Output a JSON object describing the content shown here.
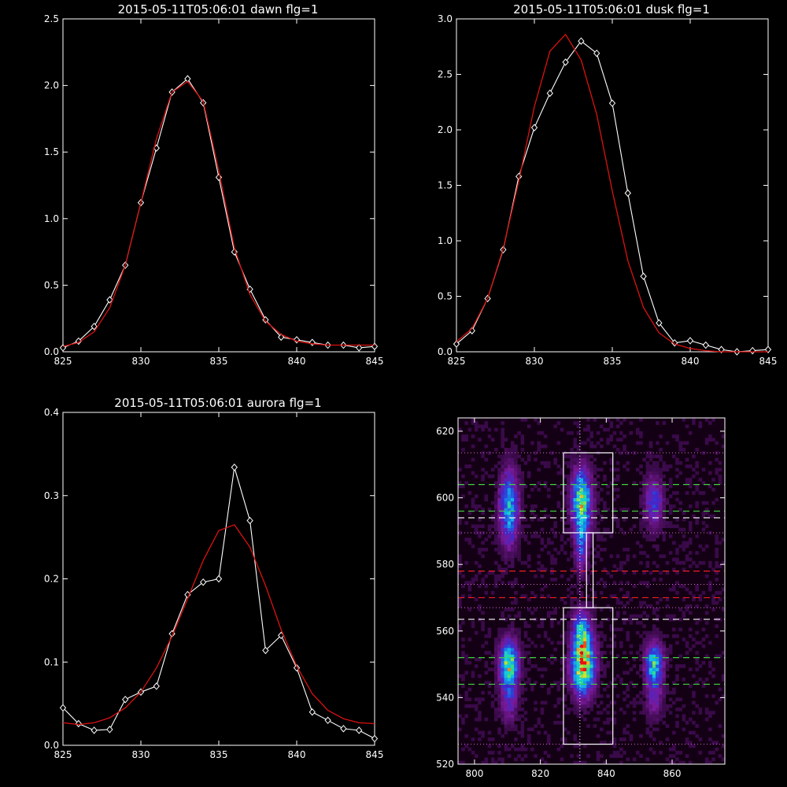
{
  "chart_data": [
    {
      "type": "line",
      "title": "2015-05-11T05:06:01 dawn flg=1",
      "xlim": [
        825,
        845
      ],
      "ylim": [
        0,
        2.5
      ],
      "xticks": [
        825,
        830,
        835,
        840,
        845
      ],
      "yticks": [
        0.0,
        0.5,
        1.0,
        1.5,
        2.0,
        2.5
      ],
      "xtick_labels": [
        "825",
        "830",
        "835",
        "840",
        "845"
      ],
      "ytick_labels": [
        "0.0",
        "0.5",
        "1.0",
        "1.5",
        "2.0",
        "2.5"
      ],
      "grid": false,
      "series": [
        {
          "kind": "data",
          "color": "#ffffff",
          "marker": "diamond",
          "x": [
            825,
            826,
            827,
            828,
            829,
            830,
            831,
            832,
            833,
            834,
            835,
            836,
            837,
            838,
            839,
            840,
            841,
            842,
            843,
            844,
            845
          ],
          "y": [
            0.03,
            0.08,
            0.19,
            0.39,
            0.65,
            1.12,
            1.53,
            1.95,
            2.05,
            1.87,
            1.31,
            0.75,
            0.47,
            0.24,
            0.11,
            0.09,
            0.07,
            0.05,
            0.05,
            0.03,
            0.04
          ]
        },
        {
          "kind": "fit",
          "color": "#dd1111",
          "x": [
            825,
            826,
            827,
            828,
            829,
            830,
            831,
            832,
            833,
            834,
            835,
            836,
            837,
            838,
            839,
            840,
            841,
            842,
            843,
            844,
            845
          ],
          "y": [
            0.04,
            0.07,
            0.15,
            0.33,
            0.65,
            1.12,
            1.6,
            1.95,
            2.03,
            1.88,
            1.36,
            0.78,
            0.43,
            0.23,
            0.13,
            0.08,
            0.06,
            0.05,
            0.05,
            0.05,
            0.05
          ]
        }
      ]
    },
    {
      "type": "line",
      "title": "2015-05-11T05:06:01 dusk flg=1",
      "xlim": [
        825,
        845
      ],
      "ylim": [
        0,
        3.0
      ],
      "xticks": [
        825,
        830,
        835,
        840,
        845
      ],
      "yticks": [
        0.0,
        0.5,
        1.0,
        1.5,
        2.0,
        2.5,
        3.0
      ],
      "xtick_labels": [
        "825",
        "830",
        "835",
        "840",
        "845"
      ],
      "ytick_labels": [
        "0.0",
        "0.5",
        "1.0",
        "1.5",
        "2.0",
        "2.5",
        "3.0"
      ],
      "grid": false,
      "series": [
        {
          "kind": "data",
          "color": "#ffffff",
          "marker": "diamond",
          "x": [
            825,
            826,
            827,
            828,
            829,
            830,
            831,
            832,
            833,
            834,
            835,
            836,
            837,
            838,
            839,
            840,
            841,
            842,
            843,
            844,
            845
          ],
          "y": [
            0.07,
            0.19,
            0.48,
            0.92,
            1.58,
            2.02,
            2.33,
            2.61,
            2.8,
            2.69,
            2.24,
            1.43,
            0.68,
            0.26,
            0.08,
            0.1,
            0.06,
            0.02,
            0.0,
            0.01,
            0.02
          ]
        },
        {
          "kind": "fit",
          "color": "#dd1111",
          "x": [
            825,
            826,
            827,
            828,
            829,
            830,
            831,
            832,
            833,
            834,
            835,
            836,
            837,
            838,
            839,
            840,
            841,
            842,
            843,
            844,
            845
          ],
          "y": [
            0.09,
            0.21,
            0.48,
            0.93,
            1.54,
            2.21,
            2.71,
            2.86,
            2.63,
            2.14,
            1.45,
            0.82,
            0.4,
            0.17,
            0.07,
            0.03,
            0.01,
            0.0,
            0.0,
            0.0,
            0.0
          ]
        }
      ]
    },
    {
      "type": "line",
      "title": "2015-05-11T05:06:01 aurora flg=1",
      "xlim": [
        825,
        845
      ],
      "ylim": [
        0,
        0.4
      ],
      "xticks": [
        825,
        830,
        835,
        840,
        845
      ],
      "yticks": [
        0.0,
        0.1,
        0.2,
        0.3,
        0.4
      ],
      "xtick_labels": [
        "825",
        "830",
        "835",
        "840",
        "845"
      ],
      "ytick_labels": [
        "0.0",
        "0.1",
        "0.2",
        "0.3",
        "0.4"
      ],
      "grid": false,
      "series": [
        {
          "kind": "data",
          "color": "#ffffff",
          "marker": "diamond",
          "x": [
            825,
            826,
            827,
            828,
            829,
            830,
            831,
            832,
            833,
            834,
            835,
            836,
            837,
            838,
            839,
            840,
            841,
            842,
            843,
            844,
            845
          ],
          "y": [
            0.045,
            0.026,
            0.018,
            0.019,
            0.055,
            0.064,
            0.071,
            0.134,
            0.181,
            0.196,
            0.2,
            0.334,
            0.27,
            0.114,
            0.132,
            0.093,
            0.04,
            0.03,
            0.02,
            0.018,
            0.008
          ]
        },
        {
          "kind": "fit",
          "color": "#dd1111",
          "x": [
            825,
            826,
            827,
            828,
            829,
            830,
            831,
            832,
            833,
            834,
            835,
            836,
            837,
            838,
            839,
            840,
            841,
            842,
            843,
            844,
            845
          ],
          "y": [
            0.027,
            0.025,
            0.027,
            0.033,
            0.045,
            0.064,
            0.093,
            0.131,
            0.176,
            0.222,
            0.258,
            0.265,
            0.238,
            0.192,
            0.139,
            0.095,
            0.062,
            0.042,
            0.032,
            0.027,
            0.026
          ]
        }
      ]
    },
    {
      "type": "heatmap",
      "xlim": [
        795,
        876
      ],
      "ylim": [
        520,
        624
      ],
      "xticks": [
        800,
        820,
        840,
        860
      ],
      "yticks": [
        520,
        540,
        560,
        580,
        600,
        620
      ],
      "xtick_labels": [
        "800",
        "820",
        "840",
        "860"
      ],
      "ytick_labels": [
        "520",
        "540",
        "560",
        "580",
        "600",
        "620"
      ],
      "grid": false,
      "colors": [
        "#140014",
        "#3a0a4a",
        "#7a1a9a",
        "#3a2ad0",
        "#1a7ae8",
        "#11c8e8",
        "#30e080",
        "#e8e020",
        "#e81010"
      ],
      "blobs": [
        {
          "x": 810.5,
          "y": 597,
          "sx": 1.8,
          "sy": 7,
          "peak": 0.55
        },
        {
          "x": 832.5,
          "y": 599,
          "sx": 1.9,
          "sy": 6,
          "peak": 0.75
        },
        {
          "x": 832.5,
          "y": 586,
          "sx": 1.2,
          "sy": 5,
          "peak": 0.35
        },
        {
          "x": 854.5,
          "y": 599,
          "sx": 1.8,
          "sy": 5,
          "peak": 0.32
        },
        {
          "x": 810.5,
          "y": 550,
          "sx": 1.8,
          "sy": 4.5,
          "peak": 0.78
        },
        {
          "x": 833,
          "y": 550,
          "sx": 2.2,
          "sy": 5.5,
          "peak": 1.0
        },
        {
          "x": 832.5,
          "y": 560,
          "sx": 1.7,
          "sy": 4,
          "peak": 0.5
        },
        {
          "x": 854.5,
          "y": 550,
          "sx": 1.7,
          "sy": 4,
          "peak": 0.62
        },
        {
          "x": 810.5,
          "y": 539,
          "sx": 1.6,
          "sy": 4,
          "peak": 0.25
        },
        {
          "x": 854.5,
          "y": 540,
          "sx": 1.6,
          "sy": 4,
          "peak": 0.2
        }
      ],
      "overlays": {
        "vline": {
          "x": 832,
          "color": "#ffffff",
          "style": "dotted"
        },
        "boxes": [
          {
            "x0": 827,
            "x1": 842,
            "y0": 589.5,
            "y1": 613.5,
            "color": "#ffffff"
          },
          {
            "x0": 834,
            "x1": 836,
            "y0": 567,
            "y1": 589.5,
            "color": "#ffffff"
          },
          {
            "x0": 827,
            "x1": 842,
            "y0": 526,
            "y1": 567,
            "color": "#ffffff"
          }
        ],
        "dotted_lines": [
          {
            "y": 613.5,
            "color": "#d070c8"
          },
          {
            "y": 589.5,
            "color": "#d070c8"
          },
          {
            "y": 574,
            "color": "#d070c8"
          },
          {
            "y": 567,
            "color": "#d070c8"
          },
          {
            "y": 526,
            "color": "#d070c8"
          }
        ],
        "dashed_lines": [
          {
            "y": 604,
            "color": "#40d040"
          },
          {
            "y": 596,
            "color": "#40d040"
          },
          {
            "y": 594,
            "color": "#ffffff"
          },
          {
            "y": 578,
            "color": "#ee2020"
          },
          {
            "y": 570,
            "color": "#ee2020"
          },
          {
            "y": 563.5,
            "color": "#ffffff"
          },
          {
            "y": 552,
            "color": "#40d040"
          },
          {
            "y": 544,
            "color": "#40d040"
          }
        ]
      }
    }
  ]
}
